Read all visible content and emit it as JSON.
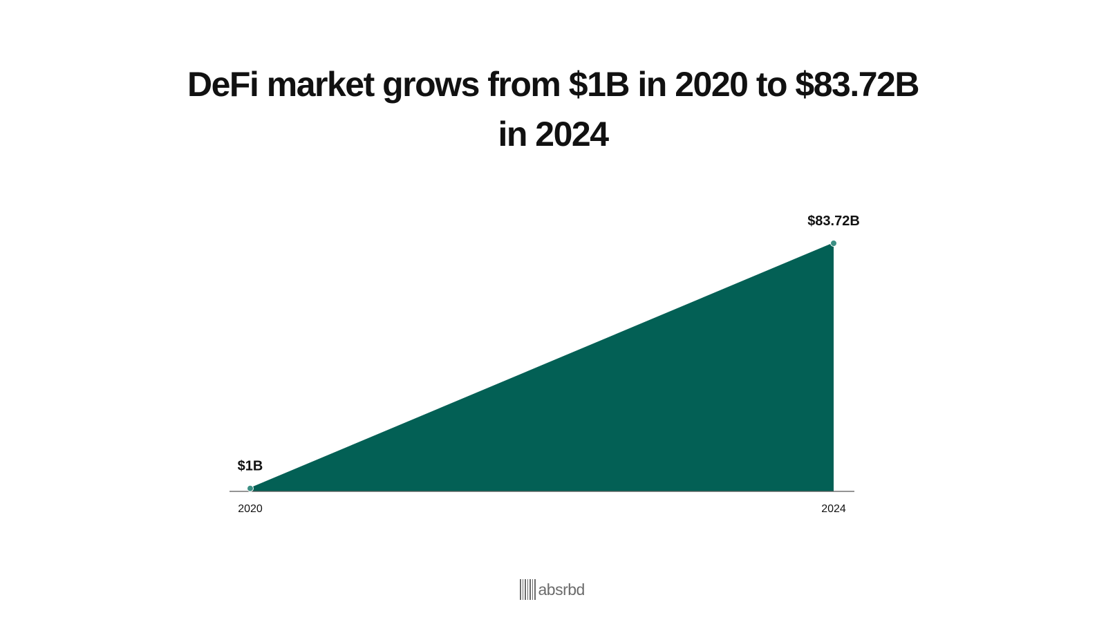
{
  "title_lines": [
    "DeFi market grows from $1B in 2020 to $83.72B",
    "in 2024"
  ],
  "brand": {
    "name": "absrbd",
    "icon": "barcode-logo-icon"
  },
  "colors": {
    "area": "#036055",
    "point": "#3c8f84",
    "baseline": "#555555",
    "label": "#111111"
  },
  "chart_data": {
    "type": "area",
    "x": [
      "2020",
      "2024"
    ],
    "series": [
      {
        "values": [
          1,
          83.72
        ]
      }
    ],
    "data_labels": [
      "$1B",
      "$83.72B"
    ],
    "unit": "$B",
    "title": "DeFi market grows from $1B in 2020 to $83.72B in 2024",
    "xlabel": "",
    "ylabel": "",
    "ylim": [
      0,
      83.72
    ],
    "grid": false,
    "legend": "none"
  }
}
